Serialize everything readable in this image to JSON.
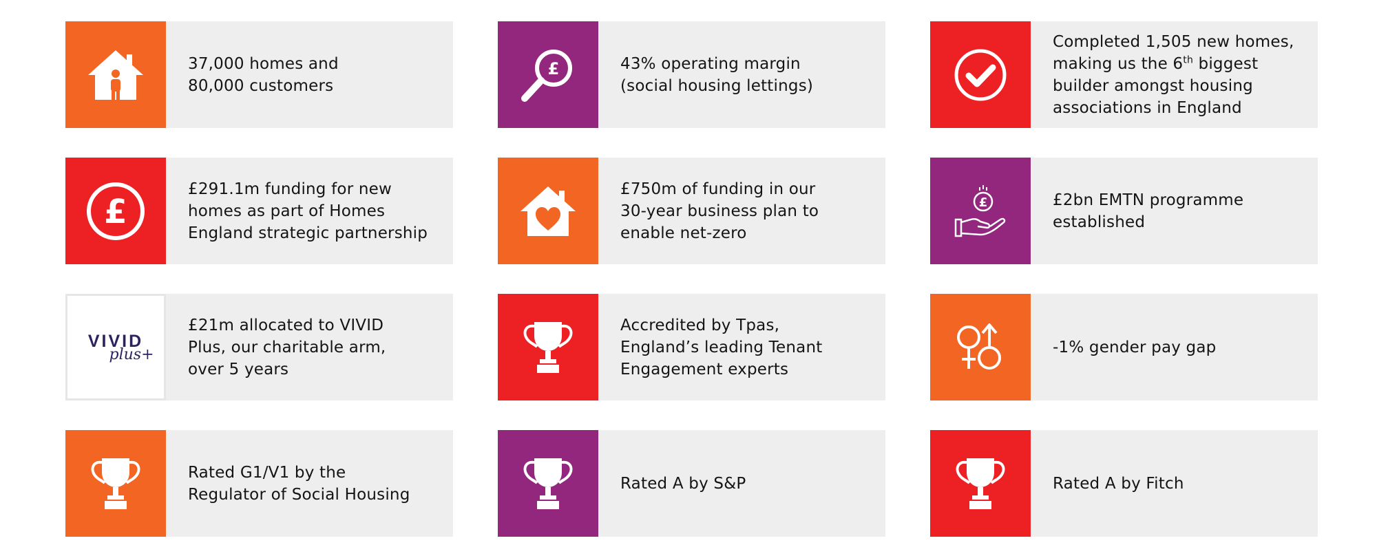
{
  "cards": [
    {
      "icon": "house-person-icon",
      "color": "#f26522",
      "lines": [
        "37,000 homes and",
        "80,000 customers"
      ]
    },
    {
      "icon": "magnifier-pound-icon",
      "color": "#93277e",
      "lines": [
        "43% operating margin",
        "(social housing lettings)"
      ]
    },
    {
      "icon": "checkmark-circle-icon",
      "color": "#ed2024",
      "lines": [
        "Completed 1,505 new homes,",
        "making us the 6",
        "th",
        " biggest",
        "builder amongst housing",
        "associations in England"
      ]
    },
    {
      "icon": "pound-circle-icon",
      "color": "#ed2024",
      "lines": [
        "£291.1m funding for new",
        "homes as part of Homes",
        "England strategic partnership"
      ]
    },
    {
      "icon": "house-heart-icon",
      "color": "#f26522",
      "lines": [
        "£750m of funding in our",
        "30-year business plan to",
        "enable net-zero"
      ]
    },
    {
      "icon": "hand-coin-icon",
      "color": "#93277e",
      "lines": [
        "£2bn EMTN programme",
        "established"
      ]
    },
    {
      "icon": "vivid-plus-logo",
      "color": "#ffffff",
      "logo_word": "VIVID",
      "logo_sub": "plus+",
      "lines": [
        "£21m allocated to VIVID",
        "Plus, our charitable arm,",
        "over 5 years"
      ]
    },
    {
      "icon": "trophy-icon",
      "color": "#ed2024",
      "lines": [
        "Accredited by Tpas,",
        "England’s leading Tenant",
        "Engagement experts"
      ]
    },
    {
      "icon": "gender-symbols-icon",
      "color": "#f26522",
      "lines": [
        "-1% gender pay gap"
      ]
    },
    {
      "icon": "trophy-icon",
      "color": "#f26522",
      "lines": [
        "Rated G1/V1 by the",
        "Regulator of Social Housing"
      ]
    },
    {
      "icon": "trophy-icon",
      "color": "#93277e",
      "lines": [
        "Rated A by S&P"
      ]
    },
    {
      "icon": "trophy-icon",
      "color": "#ed2024",
      "lines": [
        "Rated A by Fitch"
      ]
    }
  ]
}
